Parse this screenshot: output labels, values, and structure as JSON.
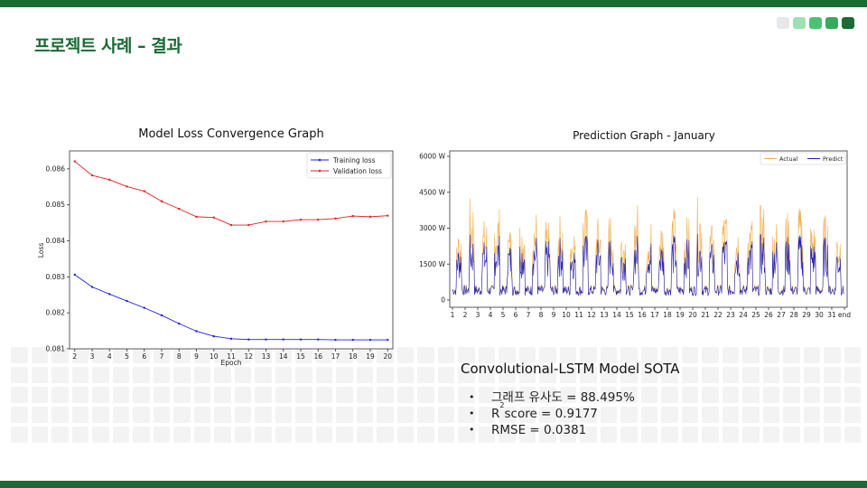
{
  "slide": {
    "title": "프로젝트 사례 – 결과",
    "progress_dots": [
      "#e6e8ea",
      "#9fe0b0",
      "#4cc173",
      "#37a85c",
      "#1a6b34"
    ]
  },
  "charts": [
    {
      "title": "Model Loss Convergence Graph",
      "xlabel": "Epoch",
      "ylabel": "Loss",
      "legend": [
        "Training loss",
        "Validation loss"
      ],
      "legend_loc": "top-right"
    },
    {
      "title": "Prediction Graph - January",
      "legend": [
        "Actual",
        "Predict"
      ],
      "legend_loc": "top-right"
    }
  ],
  "chart_data": [
    {
      "type": "line",
      "title": "Model Loss Convergence Graph",
      "xlabel": "Epoch",
      "ylabel": "Loss",
      "x": [
        2,
        3,
        4,
        5,
        6,
        7,
        8,
        9,
        10,
        11,
        12,
        13,
        14,
        15,
        16,
        17,
        18,
        19,
        20
      ],
      "ylim": [
        0.081,
        0.0865
      ],
      "yticks": [
        0.081,
        0.082,
        0.083,
        0.084,
        0.085,
        0.086
      ],
      "series": [
        {
          "name": "Training loss",
          "color": "#1f1fe0",
          "values": [
            0.08306,
            0.08272,
            0.08252,
            0.08233,
            0.08214,
            0.08193,
            0.0817,
            0.08149,
            0.08135,
            0.08128,
            0.08126,
            0.08126,
            0.08126,
            0.08126,
            0.08126,
            0.08125,
            0.08125,
            0.08125,
            0.08125
          ]
        },
        {
          "name": "Validation loss",
          "color": "#e02020",
          "values": [
            0.08621,
            0.08582,
            0.0857,
            0.08551,
            0.08538,
            0.0851,
            0.08489,
            0.08467,
            0.08465,
            0.08444,
            0.08444,
            0.08454,
            0.08454,
            0.08459,
            0.08459,
            0.08462,
            0.08469,
            0.08467,
            0.0847
          ]
        }
      ],
      "legend_loc": "top-right",
      "grid": false
    },
    {
      "type": "line",
      "title": "Prediction Graph - January",
      "xticks": [
        "1",
        "2",
        "3",
        "4",
        "5",
        "6",
        "7",
        "8",
        "9",
        "10",
        "11",
        "12",
        "13",
        "14",
        "15",
        "16",
        "17",
        "18",
        "19",
        "20",
        "21",
        "22",
        "23",
        "24",
        "25",
        "26",
        "27",
        "28",
        "29",
        "30",
        "31",
        "end"
      ],
      "yticks": [
        "0",
        "1500 W",
        "3000 W",
        "4500 W",
        "6000 W"
      ],
      "ylim": [
        0,
        6000
      ],
      "series": [
        {
          "name": "Actual",
          "color": "#f0b050",
          "daily_peaks": [
            3000,
            4300,
            3400,
            3900,
            3100,
            3500,
            3800,
            3300,
            3600,
            3200,
            3900,
            3500,
            3700,
            3100,
            4100,
            3600,
            3400,
            3900,
            3500,
            4300,
            3200,
            3800,
            3300,
            3600,
            4000,
            3400,
            3700,
            3900,
            3300,
            3600,
            3100
          ]
        },
        {
          "name": "Predict",
          "color": "#2020b0",
          "daily_peaks": [
            2500,
            3000,
            2700,
            3000,
            2600,
            2800,
            3000,
            2700,
            2900,
            2600,
            3000,
            2800,
            2900,
            2500,
            3000,
            2900,
            2700,
            3000,
            2800,
            3000,
            2600,
            3000,
            2700,
            2900,
            3000,
            2800,
            2900,
            3000,
            2700,
            2900,
            2500
          ]
        }
      ],
      "legend_loc": "top-right",
      "grid": false
    }
  ],
  "results": {
    "heading": "Convolutional-LSTM  Model SOTA",
    "bullet": "•",
    "items": [
      {
        "text": "그래프 유사도 = 88.495%"
      },
      {
        "prefix": "R",
        "sup": "2",
        "text": " score = 0.9177"
      },
      {
        "text": "RMSE = 0.0381"
      }
    ]
  }
}
